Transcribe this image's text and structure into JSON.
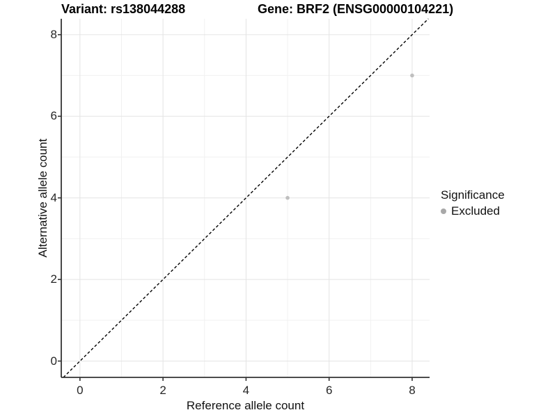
{
  "titles": {
    "variant": "Variant: rs138044288",
    "gene": "Gene: BRF2 (ENSG00000104221)"
  },
  "legend": {
    "title": "Significance",
    "items": [
      {
        "label": "Excluded",
        "color": "#a8a8a8"
      }
    ]
  },
  "chart_data": {
    "type": "scatter",
    "xlabel": "Reference allele count",
    "ylabel": "Alternative allele count",
    "xlim": [
      -0.45,
      8.42
    ],
    "ylim": [
      -0.4,
      8.39
    ],
    "xticks": [
      0,
      2,
      4,
      6,
      8
    ],
    "yticks": [
      0,
      2,
      4,
      6,
      8
    ],
    "x_minor_gridlines": [
      1,
      3,
      5,
      7
    ],
    "y_minor_gridlines": [
      1,
      3,
      5,
      7
    ],
    "grid": true,
    "legend_position": "right",
    "identity_line": {
      "slope": 1,
      "intercept": 0,
      "style": "dashed",
      "color": "#000000"
    },
    "series": [
      {
        "name": "Excluded",
        "color": "#bfbfbf",
        "point_radius": 2.8,
        "points": [
          {
            "x": 5,
            "y": 4
          },
          {
            "x": 8,
            "y": 7
          }
        ]
      }
    ],
    "colors": {
      "background": "#ffffff",
      "grid_major": "#e4e4e4",
      "grid_minor": "#f1f1f1",
      "axis_line": "#333333",
      "tick_mark": "#333333",
      "text": "#262626"
    }
  }
}
